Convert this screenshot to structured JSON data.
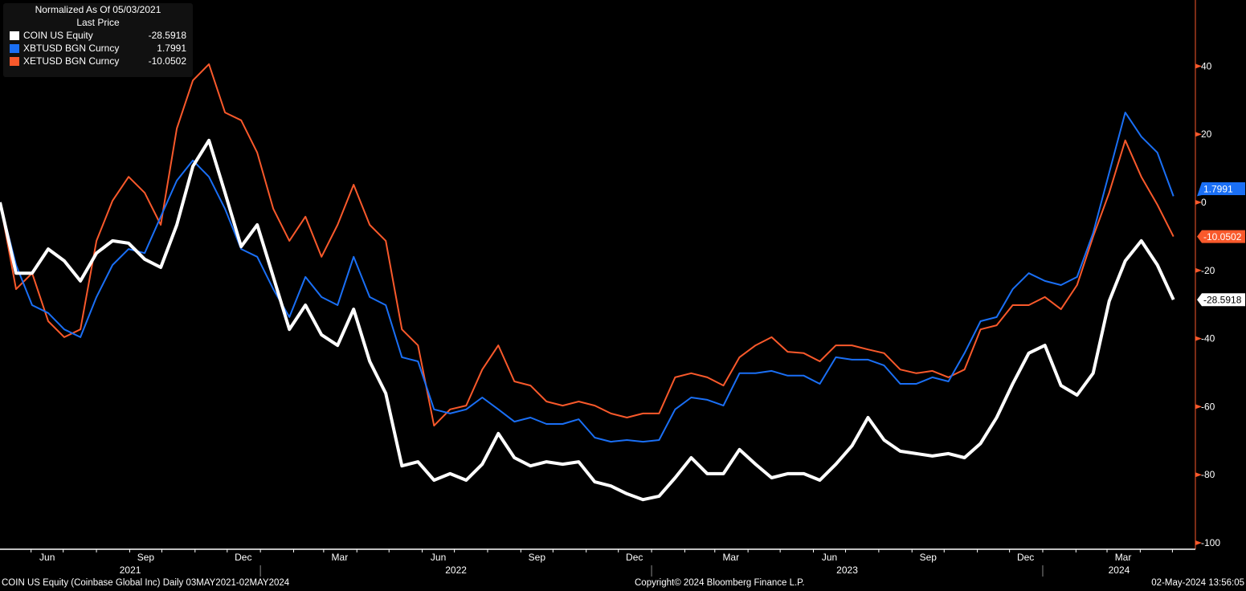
{
  "legend": {
    "header1": "Normalized As Of 05/03/2021",
    "header2": "Last Price"
  },
  "footer": {
    "left": "COIN US Equity (Coinbase Global Inc)  Daily 03MAY2021-02MAY2024",
    "center": "Copyright© 2024 Bloomberg Finance L.P.",
    "right": "02-May-2024 13:56:05"
  },
  "chart_data": {
    "type": "line",
    "title": "Normalized As Of 05/03/2021",
    "subtitle": "Last Price",
    "ylim": [
      -100,
      50
    ],
    "yticks": [
      40,
      20,
      0,
      -20,
      -40,
      -60,
      -80,
      -100
    ],
    "y_axis_side": "right",
    "xlim": [
      "2021-05-03",
      "2024-05-02"
    ],
    "month_labels": [
      "Jun",
      "Sep",
      "Dec",
      "Mar"
    ],
    "year_labels": [
      "2021",
      "2022",
      "2023",
      "2024"
    ],
    "grid": false,
    "legend_position": "top-left",
    "x": [
      "2021-05-03",
      "2021-05-18",
      "2021-06-02",
      "2021-06-17",
      "2021-07-02",
      "2021-07-17",
      "2021-08-01",
      "2021-08-16",
      "2021-08-31",
      "2021-09-15",
      "2021-09-30",
      "2021-10-15",
      "2021-10-30",
      "2021-11-14",
      "2021-11-29",
      "2021-12-14",
      "2021-12-29",
      "2022-01-13",
      "2022-01-28",
      "2022-02-12",
      "2022-02-27",
      "2022-03-14",
      "2022-03-29",
      "2022-04-13",
      "2022-04-28",
      "2022-05-13",
      "2022-05-28",
      "2022-06-12",
      "2022-06-27",
      "2022-07-12",
      "2022-07-27",
      "2022-08-11",
      "2022-08-26",
      "2022-09-10",
      "2022-09-25",
      "2022-10-10",
      "2022-10-25",
      "2022-11-09",
      "2022-11-24",
      "2022-12-09",
      "2022-12-24",
      "2023-01-08",
      "2023-01-23",
      "2023-02-07",
      "2023-02-22",
      "2023-03-09",
      "2023-03-24",
      "2023-04-08",
      "2023-04-23",
      "2023-05-08",
      "2023-05-23",
      "2023-06-07",
      "2023-06-22",
      "2023-07-07",
      "2023-07-22",
      "2023-08-06",
      "2023-08-21",
      "2023-09-05",
      "2023-09-20",
      "2023-10-05",
      "2023-10-20",
      "2023-11-04",
      "2023-11-19",
      "2023-12-04",
      "2023-12-19",
      "2024-01-03",
      "2024-01-18",
      "2024-02-02",
      "2024-02-17",
      "2024-03-03",
      "2024-03-18",
      "2024-04-02",
      "2024-04-17",
      "2024-05-02"
    ],
    "series": [
      {
        "name": "COIN US Equity",
        "last": "-28.5918",
        "color": "#ffffff",
        "values": [
          0,
          -20.8,
          -20.8,
          -13.7,
          -17.2,
          -23.1,
          -14.9,
          -11.3,
          -12.0,
          -16.7,
          -19.1,
          -6.6,
          10.6,
          18.2,
          2.8,
          -13.0,
          -6.6,
          -21.9,
          -37.3,
          -30.2,
          -38.9,
          -42.0,
          -31.4,
          -46.7,
          -56.1,
          -77.4,
          -76.2,
          -81.6,
          -79.7,
          -81.6,
          -76.9,
          -67.9,
          -75.0,
          -77.4,
          -76.2,
          -76.9,
          -76.2,
          -82.1,
          -83.3,
          -85.6,
          -87.3,
          -86.3,
          -80.9,
          -75.0,
          -79.7,
          -79.7,
          -72.6,
          -76.9,
          -80.9,
          -79.7,
          -79.7,
          -81.6,
          -76.9,
          -71.5,
          -63.2,
          -69.8,
          -73.1,
          -73.8,
          -74.5,
          -73.8,
          -75.0,
          -70.8,
          -63.2,
          -53.3,
          -44.3,
          -42.0,
          -53.8,
          -56.6,
          -50.2,
          -29.0,
          -17.2,
          -11.3,
          -18.4,
          -28.5918
        ]
      },
      {
        "name": "XBTUSD BGN Curncy",
        "last": "1.7991",
        "color": "#1a6ff5",
        "values": [
          0,
          -18.4,
          -30.2,
          -32.5,
          -37.3,
          -39.6,
          -27.8,
          -18.4,
          -13.7,
          -14.9,
          -4.2,
          6.4,
          12.3,
          7.5,
          -1.9,
          -13.7,
          -16.0,
          -25.5,
          -33.7,
          -21.9,
          -27.8,
          -30.2,
          -16.0,
          -27.8,
          -30.2,
          -45.5,
          -46.7,
          -60.8,
          -62.0,
          -60.8,
          -57.3,
          -60.8,
          -64.4,
          -63.2,
          -65.1,
          -65.1,
          -63.7,
          -69.1,
          -70.3,
          -69.8,
          -70.3,
          -69.8,
          -60.8,
          -57.3,
          -58.0,
          -59.7,
          -50.2,
          -50.2,
          -49.5,
          -50.9,
          -50.9,
          -53.3,
          -45.5,
          -46.2,
          -46.2,
          -47.9,
          -53.3,
          -53.3,
          -51.4,
          -52.6,
          -44.3,
          -34.9,
          -33.7,
          -25.5,
          -20.8,
          -23.1,
          -24.3,
          -21.9,
          -9.0,
          8.7,
          26.4,
          19.3,
          14.6,
          1.7991
        ]
      },
      {
        "name": "XETUSD BGN Curncy",
        "last": "-10.0502",
        "color": "#f9592b",
        "values": [
          0,
          -25.5,
          -20.8,
          -34.9,
          -39.6,
          -37.3,
          -11.3,
          0.5,
          7.5,
          2.8,
          -6.6,
          21.7,
          35.8,
          40.6,
          26.4,
          24.1,
          14.6,
          -1.9,
          -11.3,
          -4.2,
          -16.0,
          -6.6,
          5.2,
          -6.6,
          -11.3,
          -37.3,
          -42.0,
          -65.6,
          -60.8,
          -59.7,
          -49.1,
          -42.0,
          -52.6,
          -53.8,
          -58.5,
          -59.7,
          -58.5,
          -59.7,
          -62.0,
          -63.2,
          -62.0,
          -62.0,
          -51.4,
          -50.2,
          -51.4,
          -53.8,
          -45.5,
          -42.0,
          -39.6,
          -43.9,
          -44.3,
          -46.7,
          -42.0,
          -42.0,
          -43.2,
          -44.3,
          -49.1,
          -50.2,
          -49.5,
          -51.4,
          -49.1,
          -37.3,
          -36.1,
          -30.2,
          -30.2,
          -27.8,
          -31.4,
          -24.3,
          -10.1,
          2.8,
          18.2,
          7.5,
          -0.7,
          -10.0502
        ]
      }
    ]
  }
}
